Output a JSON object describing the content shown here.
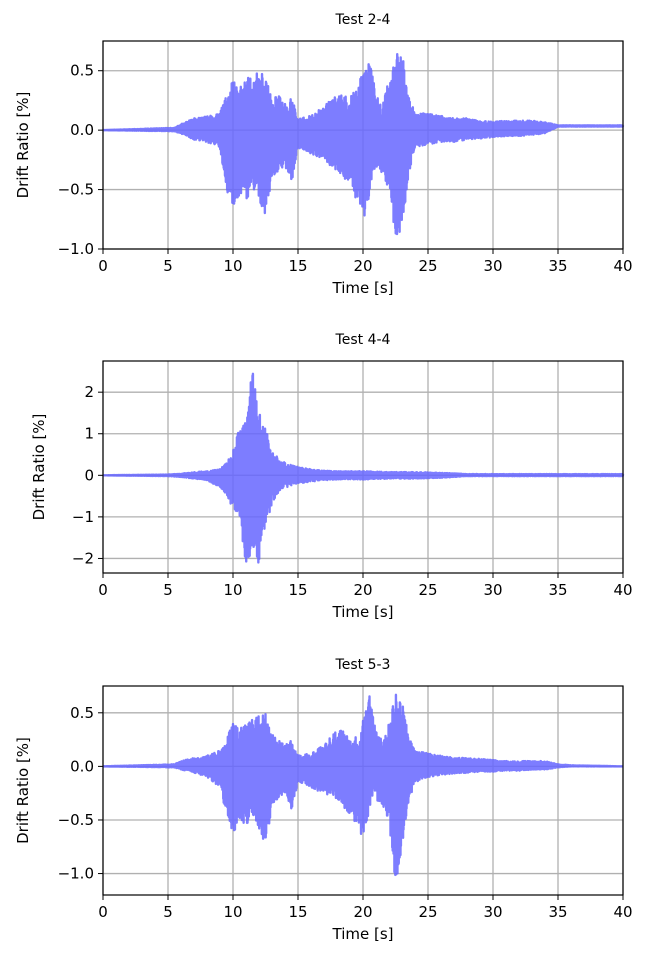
{
  "chart_data": [
    {
      "type": "line",
      "title": "Test 2-4",
      "xlabel": "Time [s]",
      "ylabel": "Drift Ratio [%]",
      "xlim": [
        0,
        40
      ],
      "ylim": [
        -1.0,
        0.75
      ],
      "xticks": [
        0,
        5,
        10,
        15,
        20,
        25,
        30,
        35,
        40
      ],
      "xtick_labels": [
        "0",
        "5",
        "10",
        "15",
        "20",
        "25",
        "30",
        "35",
        "40"
      ],
      "yticks": [
        -1.0,
        -0.5,
        0.0,
        0.5
      ],
      "ytick_labels": [
        "−1.0",
        "−0.5",
        "0.0",
        "0.5"
      ],
      "grid": true,
      "color": "#6666ff",
      "envelope": {
        "t": [
          0,
          5.5,
          6,
          7,
          8,
          9,
          9.5,
          10,
          10.5,
          11,
          11.5,
          12,
          12.5,
          13,
          13.5,
          14,
          14.5,
          15,
          16,
          17,
          18,
          19,
          19.5,
          20,
          20.5,
          21,
          21.5,
          22,
          22.5,
          23,
          23.5,
          24,
          25,
          26,
          27,
          28,
          29,
          30,
          31,
          32,
          33,
          34,
          35,
          36,
          40
        ],
        "upper": [
          0.0,
          0.02,
          0.05,
          0.1,
          0.12,
          0.15,
          0.3,
          0.43,
          0.35,
          0.45,
          0.45,
          0.5,
          0.48,
          0.25,
          0.3,
          0.22,
          0.28,
          0.1,
          0.12,
          0.2,
          0.3,
          0.28,
          0.35,
          0.5,
          0.59,
          0.3,
          0.2,
          0.45,
          0.65,
          0.69,
          0.3,
          0.15,
          0.15,
          0.12,
          0.1,
          0.1,
          0.08,
          0.07,
          0.08,
          0.08,
          0.08,
          0.07,
          0.04,
          0.04,
          0.04
        ],
        "lower": [
          0.0,
          -0.01,
          -0.03,
          -0.08,
          -0.1,
          -0.15,
          -0.5,
          -0.66,
          -0.55,
          -0.6,
          -0.48,
          -0.6,
          -0.73,
          -0.4,
          -0.35,
          -0.3,
          -0.45,
          -0.15,
          -0.2,
          -0.25,
          -0.35,
          -0.45,
          -0.6,
          -0.78,
          -0.55,
          -0.3,
          -0.4,
          -0.5,
          -0.93,
          -0.82,
          -0.4,
          -0.15,
          -0.12,
          -0.1,
          -0.1,
          -0.08,
          -0.07,
          -0.06,
          -0.05,
          -0.05,
          -0.04,
          -0.03,
          0.03,
          0.03,
          0.03
        ]
      }
    },
    {
      "type": "line",
      "title": "Test 4-4",
      "xlabel": "Time [s]",
      "ylabel": "Drift Ratio [%]",
      "xlim": [
        0,
        40
      ],
      "ylim": [
        -2.35,
        2.75
      ],
      "xticks": [
        0,
        5,
        10,
        15,
        20,
        25,
        30,
        35,
        40
      ],
      "xtick_labels": [
        "0",
        "5",
        "10",
        "15",
        "20",
        "25",
        "30",
        "35",
        "40"
      ],
      "yticks": [
        -2,
        -1,
        0,
        1,
        2
      ],
      "ytick_labels": [
        "−2",
        "−1",
        "0",
        "1",
        "2"
      ],
      "grid": true,
      "color": "#6666ff",
      "envelope": {
        "t": [
          0,
          5,
          6,
          7,
          8,
          9,
          9.5,
          10,
          10.5,
          11,
          11.5,
          12,
          12.5,
          13,
          13.5,
          14,
          15,
          16,
          17,
          18,
          20,
          22,
          24,
          26,
          27,
          28,
          40
        ],
        "upper": [
          0.0,
          0.02,
          0.04,
          0.08,
          0.1,
          0.15,
          0.3,
          0.6,
          1.2,
          1.4,
          2.55,
          1.6,
          1.15,
          0.6,
          0.4,
          0.3,
          0.2,
          0.15,
          0.12,
          0.1,
          0.1,
          0.08,
          0.08,
          0.06,
          0.05,
          0.03,
          0.03
        ],
        "lower": [
          0.0,
          -0.02,
          -0.04,
          -0.08,
          -0.12,
          -0.3,
          -0.5,
          -0.8,
          -1.0,
          -2.2,
          -1.8,
          -2.15,
          -1.2,
          -0.7,
          -0.4,
          -0.3,
          -0.2,
          -0.15,
          -0.12,
          -0.1,
          -0.1,
          -0.08,
          -0.08,
          -0.06,
          -0.04,
          -0.02,
          -0.02
        ]
      }
    },
    {
      "type": "line",
      "title": "Test 5-3",
      "xlabel": "Time [s]",
      "ylabel": "Drift Ratio [%]",
      "xlim": [
        0,
        40
      ],
      "ylim": [
        -1.2,
        0.75
      ],
      "xticks": [
        0,
        5,
        10,
        15,
        20,
        25,
        30,
        35,
        40
      ],
      "xtick_labels": [
        "0",
        "5",
        "10",
        "15",
        "20",
        "25",
        "30",
        "35",
        "40"
      ],
      "yticks": [
        -1.0,
        -0.5,
        0.0,
        0.5
      ],
      "ytick_labels": [
        "−1.0",
        "−0.5",
        "0.0",
        "0.5"
      ],
      "grid": true,
      "color": "#6666ff",
      "envelope": {
        "t": [
          0,
          5.5,
          6,
          7,
          8,
          9,
          9.5,
          10,
          10.5,
          11,
          11.5,
          12,
          12.5,
          13,
          13.5,
          14,
          14.5,
          15,
          16,
          17,
          18,
          19,
          19.5,
          20,
          20.5,
          21,
          21.5,
          22,
          22.5,
          23,
          23.5,
          24,
          25,
          26,
          27,
          28,
          29,
          30,
          31,
          32,
          33,
          34,
          35,
          36,
          40
        ],
        "upper": [
          0.0,
          0.02,
          0.05,
          0.08,
          0.1,
          0.15,
          0.3,
          0.4,
          0.35,
          0.4,
          0.45,
          0.48,
          0.49,
          0.3,
          0.25,
          0.2,
          0.25,
          0.1,
          0.12,
          0.2,
          0.35,
          0.3,
          0.3,
          0.45,
          0.66,
          0.35,
          0.25,
          0.4,
          0.68,
          0.6,
          0.3,
          0.15,
          0.12,
          0.1,
          0.08,
          0.08,
          0.07,
          0.06,
          0.05,
          0.05,
          0.05,
          0.05,
          0.02,
          0.01,
          0.0
        ],
        "lower": [
          0.0,
          -0.01,
          -0.03,
          -0.06,
          -0.1,
          -0.2,
          -0.45,
          -0.63,
          -0.5,
          -0.55,
          -0.45,
          -0.58,
          -0.78,
          -0.35,
          -0.3,
          -0.25,
          -0.4,
          -0.15,
          -0.2,
          -0.25,
          -0.3,
          -0.45,
          -0.55,
          -0.73,
          -0.4,
          -0.3,
          -0.4,
          -0.5,
          -1.12,
          -0.8,
          -0.35,
          -0.15,
          -0.1,
          -0.08,
          -0.07,
          -0.06,
          -0.05,
          -0.05,
          -0.04,
          -0.04,
          -0.03,
          -0.03,
          -0.01,
          0.0,
          0.0
        ]
      }
    }
  ]
}
